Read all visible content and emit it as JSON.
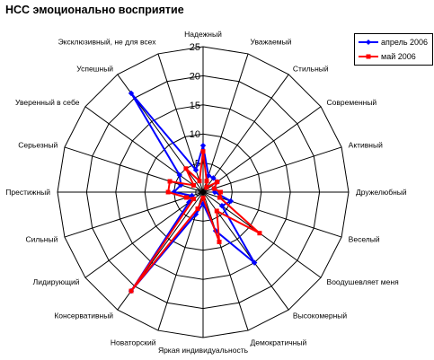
{
  "chart_data": {
    "type": "radar",
    "title": "НСС эмоционально восприятие",
    "axes": [
      "Надежный",
      "Уважаемый",
      "Стильный",
      "Современный",
      "Активный",
      "Дружелюбный",
      "Веселый",
      "Воодушевляет меня",
      "Высокомерный",
      "Демократичный",
      "Яркая индивидуальность",
      "Новаторский",
      "Консервативный",
      "Лидирующий",
      "Сильный",
      "Престижный",
      "Серьезный",
      "Уверенный в себе",
      "Успешный",
      "Эксклюзивный, не для всех"
    ],
    "rlim": [
      0,
      25
    ],
    "ticks": [
      0,
      5,
      10,
      15,
      20,
      25
    ],
    "legend_position": "top-right",
    "series": [
      {
        "name": "апрель 2006",
        "color": "#0000ff",
        "marker": "diamond",
        "values": [
          8,
          3,
          3,
          3,
          2,
          2,
          5,
          4,
          15,
          7,
          2,
          4,
          21,
          3,
          2,
          5,
          4,
          5,
          21,
          4
        ]
      },
      {
        "name": "май 2006",
        "color": "#ff0000",
        "marker": "square",
        "values": [
          7,
          2,
          1,
          3,
          2,
          3,
          3,
          12,
          4,
          9,
          1,
          3,
          21,
          2,
          3,
          6,
          6,
          2,
          5,
          2
        ]
      }
    ]
  }
}
